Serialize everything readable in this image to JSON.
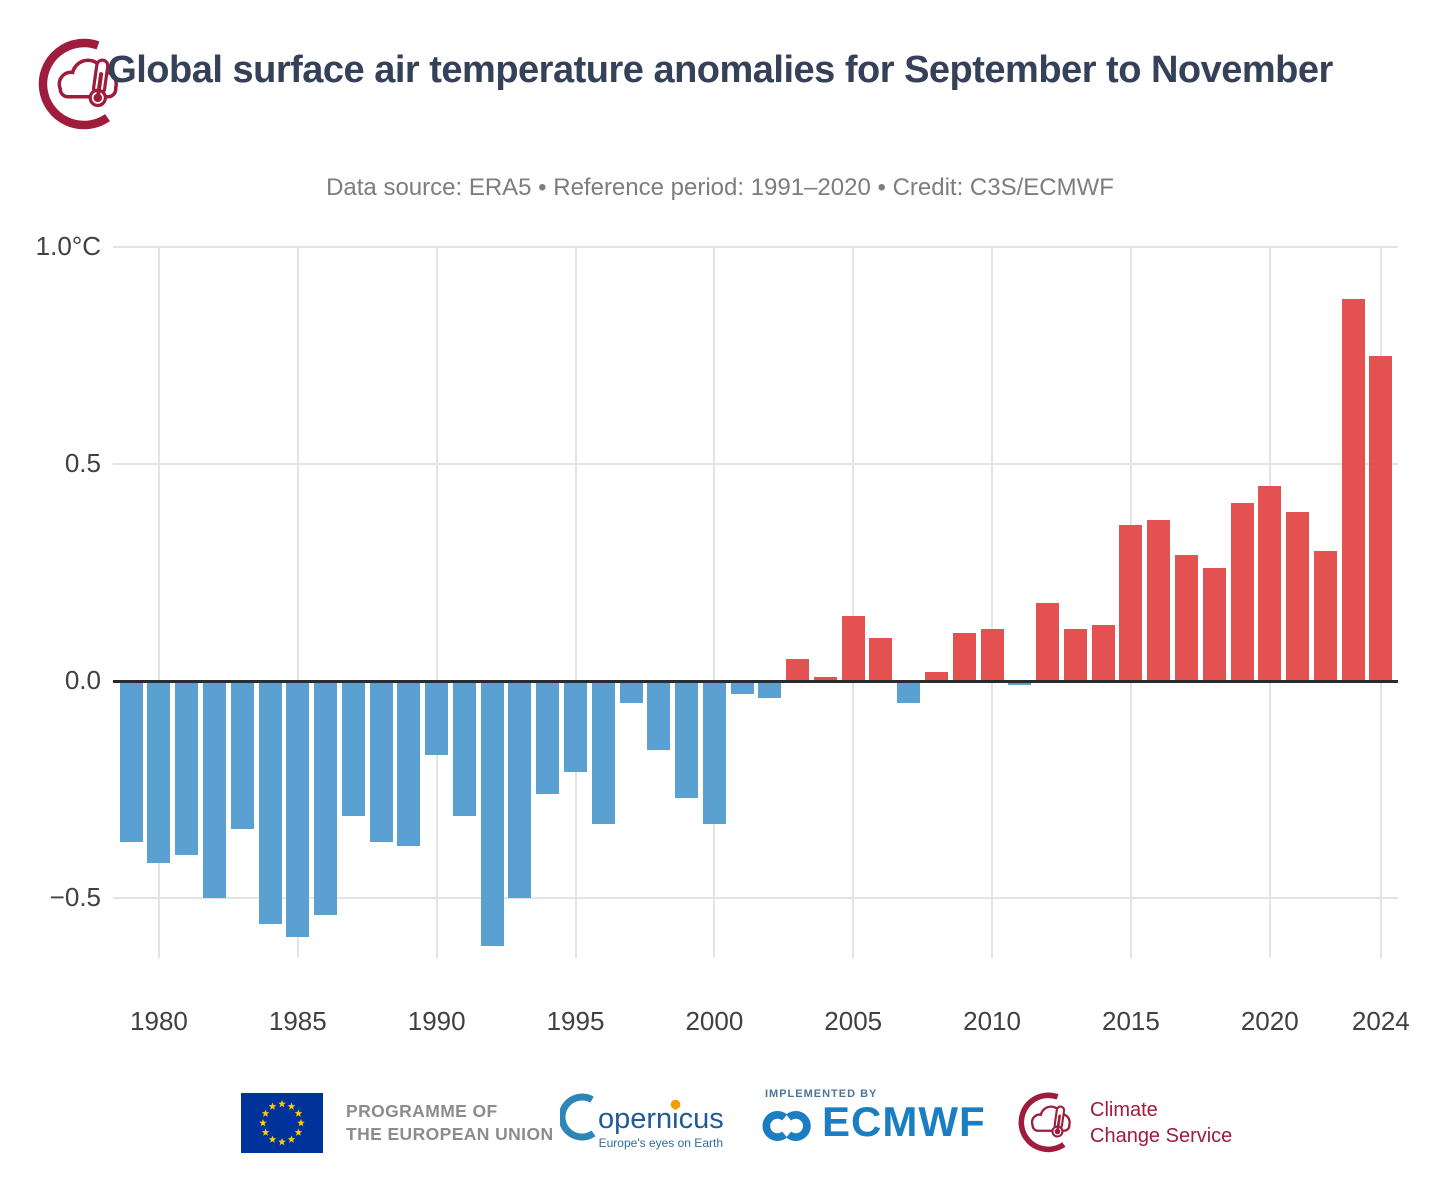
{
  "header": {
    "logo_icon": "c3s-crescent-cloud-thermometer-icon"
  },
  "chart_data": {
    "type": "bar",
    "title": "Global surface air temperature anomalies for September to November",
    "subtitle": "Data source: ERA5 • Reference period: 1991–2020 • Credit: C3S/ECMWF",
    "unit": "°C",
    "years": [
      1979,
      1980,
      1981,
      1982,
      1983,
      1984,
      1985,
      1986,
      1987,
      1988,
      1989,
      1990,
      1991,
      1992,
      1993,
      1994,
      1995,
      1996,
      1997,
      1998,
      1999,
      2000,
      2001,
      2002,
      2003,
      2004,
      2005,
      2006,
      2007,
      2008,
      2009,
      2010,
      2011,
      2012,
      2013,
      2014,
      2015,
      2016,
      2017,
      2018,
      2019,
      2020,
      2021,
      2022,
      2023,
      2024
    ],
    "values": [
      -0.37,
      -0.42,
      -0.4,
      -0.5,
      -0.34,
      -0.56,
      -0.59,
      -0.54,
      -0.31,
      -0.37,
      -0.38,
      -0.17,
      -0.31,
      -0.61,
      -0.5,
      -0.26,
      -0.21,
      -0.33,
      -0.05,
      -0.16,
      -0.27,
      -0.33,
      -0.03,
      -0.04,
      0.05,
      0.01,
      0.15,
      0.1,
      -0.05,
      0.02,
      0.11,
      0.12,
      -0.01,
      0.18,
      0.12,
      0.13,
      0.36,
      0.37,
      0.29,
      0.26,
      0.41,
      0.45,
      0.39,
      0.3,
      0.88,
      0.75
    ],
    "xticks": [
      1980,
      1985,
      1990,
      1995,
      2000,
      2005,
      2010,
      2015,
      2020,
      2024
    ],
    "xtick_labels": [
      "1980",
      "1985",
      "1990",
      "1995",
      "2000",
      "2005",
      "2010",
      "2015",
      "2020",
      "2024"
    ],
    "yticks": [
      {
        "value": 1.0,
        "label": "1.0°C"
      },
      {
        "value": 0.5,
        "label": "0.5"
      },
      {
        "value": 0.0,
        "label": "0.0"
      },
      {
        "value": -0.5,
        "label": "−0.5"
      }
    ],
    "ylim": [
      -0.64,
      1.0
    ],
    "grid": true,
    "legend": null,
    "bar_colors": {
      "positive": "#e35150",
      "negative": "#5aa0d0"
    }
  },
  "colors": {
    "title": "#344159",
    "subtitle": "#7d7d7d",
    "axis_label": "#404040",
    "gridline": "#e4e4e4",
    "zero_line": "#2b2b2b",
    "positive_bar": "#e35150",
    "negative_bar": "#5aa0d0",
    "c3s_crimson": "#9e1c3c",
    "ecmwf_blue": "#1b7ec2",
    "copernicus_blue": "#1f5b99",
    "copernicus_dot_orange": "#f59b00",
    "eu_flag_blue": "#003399",
    "eu_star_yellow": "#ffcc00"
  },
  "footer": {
    "eu_programme": {
      "line1": "PROGRAMME OF",
      "line2": "THE EUROPEAN UNION"
    },
    "copernicus": {
      "wordmark": "opernicus",
      "tagline": "Europe's eyes on Earth"
    },
    "ecmwf": {
      "implemented_by": "IMPLEMENTED BY",
      "wordmark": "ECMWF"
    },
    "climate_change_service": {
      "line1": "Climate",
      "line2": "Change Service"
    }
  }
}
